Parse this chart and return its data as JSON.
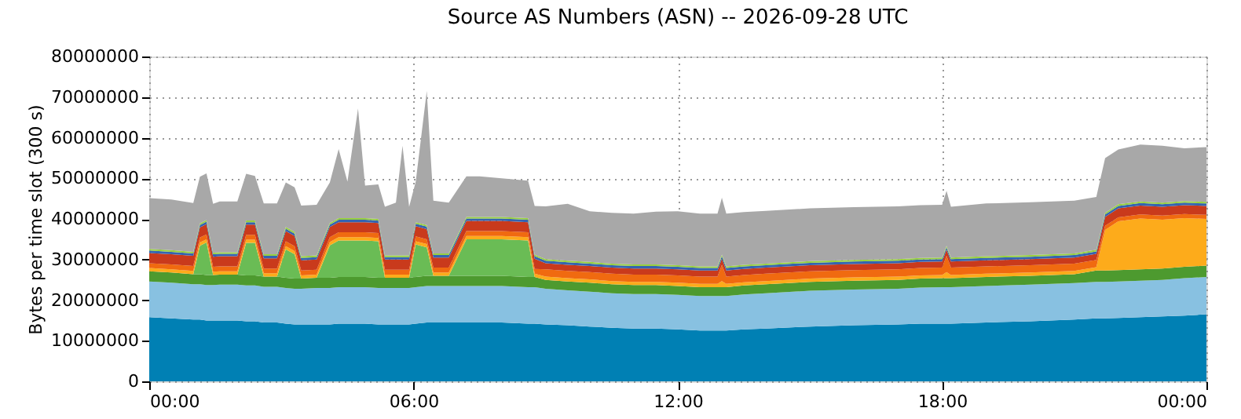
{
  "chart_data": {
    "type": "area",
    "title": "Source AS Numbers (ASN) -- 2026-09-28 UTC",
    "ylabel": "Bytes per time slot (300 s)",
    "x": [
      0,
      0.5,
      1.0,
      1.15,
      1.3,
      1.45,
      1.6,
      2.0,
      2.2,
      2.4,
      2.6,
      2.9,
      3.1,
      3.3,
      3.45,
      3.8,
      4.1,
      4.3,
      4.5,
      4.74,
      4.9,
      5.2,
      5.35,
      5.6,
      5.75,
      5.9,
      6.05,
      6.3,
      6.45,
      6.8,
      7.2,
      7.5,
      8.0,
      8.6,
      8.75,
      9.0,
      9.5,
      10.0,
      10.5,
      11.0,
      11.5,
      12.0,
      12.5,
      12.9,
      13.0,
      13.1,
      13.5,
      14.0,
      15.0,
      16.0,
      17.0,
      17.5,
      18.0,
      18.1,
      18.2,
      19.0,
      20.0,
      21.0,
      21.5,
      21.7,
      22.0,
      22.5,
      23.0,
      23.5,
      24.0
    ],
    "stacked": true,
    "grid": true,
    "legend": false,
    "xlim": [
      0,
      24
    ],
    "xticks": [
      {
        "value": 0,
        "label": "00:00"
      },
      {
        "value": 6,
        "label": "06:00"
      },
      {
        "value": 12,
        "label": "12:00"
      },
      {
        "value": 18,
        "label": "18:00"
      },
      {
        "value": 24,
        "label": "00:00"
      }
    ],
    "ylim": [
      0,
      80000000
    ],
    "yticks": [
      0,
      10000000,
      20000000,
      30000000,
      40000000,
      50000000,
      60000000,
      70000000,
      80000000
    ],
    "series": [
      {
        "color": "#0080b4",
        "values": [
          15800000.0,
          15500000.0,
          15200000.0,
          15200000.0,
          15000000.0,
          15000000.0,
          15000000.0,
          15000000.0,
          14800000.0,
          14800000.0,
          14500000.0,
          14500000.0,
          14200000.0,
          14000000.0,
          14000000.0,
          14000000.0,
          14000000.0,
          14200000.0,
          14200000.0,
          14200000.0,
          14200000.0,
          14000000.0,
          14000000.0,
          14000000.0,
          14000000.0,
          14000000.0,
          14200000.0,
          14500000.0,
          14500000.0,
          14500000.0,
          14500000.0,
          14500000.0,
          14500000.0,
          14200000.0,
          14200000.0,
          14000000.0,
          13800000.0,
          13500000.0,
          13200000.0,
          13000000.0,
          13000000.0,
          12800000.0,
          12500000.0,
          12500000.0,
          12500000.0,
          12500000.0,
          12800000.0,
          13000000.0,
          13500000.0,
          13800000.0,
          14000000.0,
          14200000.0,
          14200000.0,
          14200000.0,
          14200000.0,
          14500000.0,
          14800000.0,
          15200000.0,
          15500000.0,
          15500000.0,
          15600000.0,
          15800000.0,
          16000000.0,
          16200000.0,
          16500000.0
        ]
      },
      {
        "color": "#88c1e1",
        "values": [
          8800000.0,
          8800000.0,
          8700000.0,
          8700000.0,
          8700000.0,
          8700000.0,
          8800000.0,
          8800000.0,
          8800000.0,
          8800000.0,
          8800000.0,
          8800000.0,
          8800000.0,
          8800000.0,
          8800000.0,
          9000000.0,
          9000000.0,
          9000000.0,
          9000000.0,
          9000000.0,
          9000000.0,
          9000000.0,
          9000000.0,
          9000000.0,
          9000000.0,
          9000000.0,
          9000000.0,
          9000000.0,
          9000000.0,
          9000000.0,
          9000000.0,
          9000000.0,
          9000000.0,
          9000000.0,
          9000000.0,
          8800000.0,
          8600000.0,
          8600000.0,
          8500000.0,
          8500000.0,
          8500000.0,
          8500000.0,
          8500000.0,
          8500000.0,
          8500000.0,
          8500000.0,
          8600000.0,
          8700000.0,
          8800000.0,
          8800000.0,
          8800000.0,
          8900000.0,
          9000000.0,
          9000000.0,
          9000000.0,
          9000000.0,
          9000000.0,
          9000000.0,
          9000000.0,
          9000000.0,
          9000000.0,
          9000000.0,
          9000000.0,
          9200000.0,
          9200000.0
        ]
      },
      {
        "color": "#4d9a2f",
        "values": [
          2500000.0,
          2500000.0,
          2500000.0,
          2500000.0,
          2500000.0,
          2500000.0,
          2500000.0,
          2500000.0,
          2500000.0,
          2500000.0,
          2500000.0,
          2500000.0,
          2500000.0,
          2500000.0,
          2500000.0,
          2500000.0,
          2500000.0,
          2500000.0,
          2500000.0,
          2500000.0,
          2500000.0,
          2500000.0,
          2500000.0,
          2500000.0,
          2500000.0,
          2500000.0,
          2500000.0,
          2500000.0,
          2500000.0,
          2500000.0,
          2500000.0,
          2500000.0,
          2500000.0,
          2500000.0,
          2500000.0,
          2200000.0,
          2200000.0,
          2200000.0,
          2200000.0,
          2200000.0,
          2200000.0,
          2200000.0,
          2200000.0,
          2200000.0,
          2200000.0,
          2200000.0,
          2200000.0,
          2200000.0,
          2200000.0,
          2200000.0,
          2200000.0,
          2200000.0,
          2200000.0,
          2200000.0,
          2200000.0,
          2200000.0,
          2200000.0,
          2200000.0,
          2800000.0,
          2800000.0,
          2800000.0,
          2800000.0,
          2800000.0,
          2800000.0,
          2800000.0
        ]
      },
      {
        "color": "#6abc55",
        "values": [
          0,
          0,
          0,
          7000000.0,
          8000000.0,
          0,
          0,
          0,
          8000000.0,
          8000000.0,
          0,
          0,
          7000000.0,
          6000000.0,
          0,
          0,
          8000000.0,
          9000000.0,
          9000000.0,
          9000000.0,
          9000000.0,
          9000000.0,
          0,
          0,
          0,
          0,
          8000000.0,
          7000000.0,
          0,
          0,
          9000000.0,
          9000000.0,
          9000000.0,
          9000000.0,
          0,
          0,
          0,
          0,
          0,
          0,
          0,
          0,
          0,
          0,
          0,
          0,
          0,
          0,
          0,
          0,
          0,
          0,
          0,
          0,
          0,
          0,
          0,
          0,
          0,
          0,
          0,
          0,
          0,
          0,
          0
        ]
      },
      {
        "color": "#fdab1b",
        "values": [
          800000.0,
          800000.0,
          800000.0,
          800000.0,
          800000.0,
          800000.0,
          800000.0,
          800000.0,
          800000.0,
          800000.0,
          800000.0,
          800000.0,
          800000.0,
          800000.0,
          800000.0,
          800000.0,
          800000.0,
          800000.0,
          800000.0,
          800000.0,
          800000.0,
          800000.0,
          800000.0,
          800000.0,
          800000.0,
          800000.0,
          800000.0,
          800000.0,
          800000.0,
          800000.0,
          800000.0,
          800000.0,
          800000.0,
          800000.0,
          800000.0,
          800000.0,
          800000.0,
          800000.0,
          800000.0,
          800000.0,
          800000.0,
          800000.0,
          800000.0,
          800000.0,
          1500000.0,
          800000.0,
          800000.0,
          800000.0,
          800000.0,
          800000.0,
          800000.0,
          800000.0,
          800000.0,
          1500000.0,
          800000.0,
          800000.0,
          800000.0,
          800000.0,
          800000.0,
          10000000.0,
          12000000.0,
          12500000.0,
          12000000.0,
          12000000.0,
          11500000.0
        ]
      },
      {
        "color": "#f06a10",
        "values": [
          1200000.0,
          1200000.0,
          1200000.0,
          1200000.0,
          1200000.0,
          1200000.0,
          1200000.0,
          1200000.0,
          1200000.0,
          1200000.0,
          1200000.0,
          1200000.0,
          1200000.0,
          1200000.0,
          1200000.0,
          1200000.0,
          1200000.0,
          1200000.0,
          1200000.0,
          1200000.0,
          1200000.0,
          1200000.0,
          1200000.0,
          1200000.0,
          1200000.0,
          1200000.0,
          1200000.0,
          1200000.0,
          1200000.0,
          1200000.0,
          1200000.0,
          1200000.0,
          1200000.0,
          1200000.0,
          1200000.0,
          1800000.0,
          1800000.0,
          1800000.0,
          1800000.0,
          1800000.0,
          1800000.0,
          1800000.0,
          1800000.0,
          1800000.0,
          4000000.0,
          1800000.0,
          1800000.0,
          1800000.0,
          1800000.0,
          1800000.0,
          1800000.0,
          1800000.0,
          1800000.0,
          4000000.0,
          1800000.0,
          1800000.0,
          1800000.0,
          1800000.0,
          1800000.0,
          1000000.0,
          1000000.0,
          1000000.0,
          1000000.0,
          1000000.0,
          1000000.0
        ]
      },
      {
        "color": "#c93a1c",
        "values": [
          2500000.0,
          2500000.0,
          2500000.0,
          2500000.0,
          2500000.0,
          2500000.0,
          2500000.0,
          2500000.0,
          2500000.0,
          2500000.0,
          2500000.0,
          2500000.0,
          2500000.0,
          2500000.0,
          2500000.0,
          2500000.0,
          2500000.0,
          2500000.0,
          2500000.0,
          2500000.0,
          2500000.0,
          2500000.0,
          2500000.0,
          2500000.0,
          2500000.0,
          2500000.0,
          2500000.0,
          2500000.0,
          2500000.0,
          2500000.0,
          2500000.0,
          2500000.0,
          2500000.0,
          2500000.0,
          2500000.0,
          1500000.0,
          1500000.0,
          1500000.0,
          1500000.0,
          1500000.0,
          1500000.0,
          1500000.0,
          1500000.0,
          1500000.0,
          1500000.0,
          1500000.0,
          1500000.0,
          1500000.0,
          1500000.0,
          1500000.0,
          1500000.0,
          1500000.0,
          1500000.0,
          1500000.0,
          1500000.0,
          1500000.0,
          1500000.0,
          1500000.0,
          1500000.0,
          2200000.0,
          2200000.0,
          2200000.0,
          2200000.0,
          2200000.0,
          2200000.0
        ]
      },
      {
        "color": "#3464b0",
        "values": [
          600000.0,
          600000.0,
          600000.0,
          600000.0,
          600000.0,
          600000.0,
          600000.0,
          600000.0,
          600000.0,
          600000.0,
          600000.0,
          600000.0,
          600000.0,
          600000.0,
          600000.0,
          600000.0,
          600000.0,
          600000.0,
          600000.0,
          600000.0,
          600000.0,
          600000.0,
          600000.0,
          600000.0,
          600000.0,
          600000.0,
          600000.0,
          600000.0,
          600000.0,
          600000.0,
          600000.0,
          600000.0,
          600000.0,
          600000.0,
          600000.0,
          600000.0,
          600000.0,
          600000.0,
          600000.0,
          600000.0,
          600000.0,
          600000.0,
          600000.0,
          600000.0,
          600000.0,
          600000.0,
          600000.0,
          600000.0,
          600000.0,
          600000.0,
          600000.0,
          600000.0,
          600000.0,
          600000.0,
          600000.0,
          600000.0,
          600000.0,
          600000.0,
          600000.0,
          600000.0,
          600000.0,
          600000.0,
          600000.0,
          600000.0,
          600000.0
        ]
      },
      {
        "color": "#98d040",
        "values": [
          400000.0,
          400000.0,
          400000.0,
          400000.0,
          400000.0,
          400000.0,
          400000.0,
          400000.0,
          400000.0,
          400000.0,
          400000.0,
          400000.0,
          400000.0,
          400000.0,
          400000.0,
          400000.0,
          400000.0,
          400000.0,
          400000.0,
          400000.0,
          400000.0,
          400000.0,
          400000.0,
          400000.0,
          400000.0,
          400000.0,
          400000.0,
          400000.0,
          400000.0,
          400000.0,
          400000.0,
          400000.0,
          400000.0,
          400000.0,
          400000.0,
          400000.0,
          400000.0,
          400000.0,
          400000.0,
          400000.0,
          400000.0,
          400000.0,
          400000.0,
          400000.0,
          400000.0,
          400000.0,
          400000.0,
          400000.0,
          400000.0,
          400000.0,
          400000.0,
          400000.0,
          400000.0,
          400000.0,
          400000.0,
          400000.0,
          400000.0,
          400000.0,
          400000.0,
          400000.0,
          400000.0,
          400000.0,
          400000.0,
          400000.0,
          400000.0
        ]
      },
      {
        "color": "#a8a8a8",
        "values": [
          12500000.0,
          12500000.0,
          12000000.0,
          11500000.0,
          11500000.0,
          12000000.0,
          12500000.0,
          12500000.0,
          11500000.0,
          11000000.0,
          12500000.0,
          12500000.0,
          11000000.0,
          11000000.0,
          12500000.0,
          12500000.0,
          10000000.0,
          17000000.0,
          9000000.0,
          27000000.0,
          8000000.0,
          8500000.0,
          12000000.0,
          13000000.0,
          27000000.0,
          12000000.0,
          10000000.0,
          33000000.0,
          13000000.0,
          12500000.0,
          10000000.0,
          10000000.0,
          9500000.0,
          9200000.0,
          12000000.0,
          13000000.0,
          14000000.0,
          12500000.0,
          12500000.0,
          12500000.0,
          13000000.0,
          13300000.0,
          13000000.0,
          13000000.0,
          14000000.0,
          13000000.0,
          13000000.0,
          13000000.0,
          13000000.0,
          13000000.0,
          13000000.0,
          13000000.0,
          13000000.0,
          13500000.0,
          12500000.0,
          13000000.0,
          13000000.0,
          13000000.0,
          13000000.0,
          13500000.0,
          13500000.0,
          14000000.0,
          14000000.0,
          13000000.0,
          13500000.0
        ]
      }
    ]
  }
}
